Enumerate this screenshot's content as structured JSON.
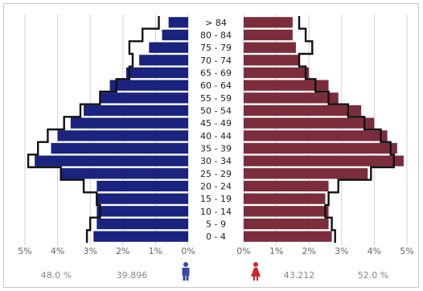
{
  "chart_data": {
    "type": "bar",
    "subtype": "population-pyramid",
    "age_groups": [
      "0 - 4",
      "5 - 9",
      "10 - 14",
      "15 - 19",
      "20 - 24",
      "25 - 29",
      "30 - 34",
      "35 - 39",
      "40 - 44",
      "45 - 49",
      "50 - 54",
      "55 - 59",
      "60 - 64",
      "65 - 69",
      "70 - 74",
      "75 - 79",
      "80 - 84",
      "> 84"
    ],
    "series": [
      {
        "side": "left",
        "color": "#1a237e",
        "values": [
          2.9,
          2.8,
          2.8,
          2.8,
          2.8,
          3.9,
          4.7,
          4.2,
          4.0,
          3.6,
          3.2,
          2.7,
          2.4,
          1.9,
          1.5,
          1.2,
          0.8,
          0.6
        ]
      },
      {
        "side": "right",
        "color": "#7b2d3c",
        "values": [
          2.7,
          2.6,
          2.6,
          2.5,
          2.6,
          3.8,
          4.9,
          4.7,
          4.4,
          4.0,
          3.6,
          2.9,
          2.6,
          2.0,
          1.7,
          1.6,
          1.5,
          1.5
        ]
      }
    ],
    "outline_series": [
      {
        "side": "left",
        "values": [
          3.1,
          3.0,
          2.7,
          2.8,
          3.2,
          3.9,
          4.9,
          4.6,
          4.3,
          3.8,
          3.3,
          2.7,
          2.2,
          1.8,
          1.7,
          1.8,
          1.4,
          0.9
        ]
      },
      {
        "side": "right",
        "values": [
          2.8,
          2.7,
          2.5,
          2.6,
          2.9,
          3.9,
          4.6,
          4.5,
          4.2,
          3.7,
          3.2,
          2.6,
          2.2,
          1.9,
          1.7,
          2.1,
          1.9,
          1.7
        ]
      }
    ],
    "xlim": [
      0,
      5
    ],
    "left_ticks": [
      "5%",
      "4%",
      "3%",
      "2%",
      "1%",
      "0%"
    ],
    "right_ticks": [
      "0%",
      "1%",
      "2%",
      "3%",
      "4%",
      "5%"
    ],
    "grid": true
  },
  "footer": {
    "male_percent": "48.0 %",
    "male_count": "39.896",
    "male_icon": "male-icon",
    "female_count": "43.212",
    "female_percent": "52.0 %",
    "female_icon": "female-icon"
  },
  "colors": {
    "male": "#1a237e",
    "female": "#7b2d3c",
    "male_icon": "#3949ab",
    "female_icon": "#c62828",
    "grid": "#d9d9d9",
    "outline": "#111111"
  }
}
